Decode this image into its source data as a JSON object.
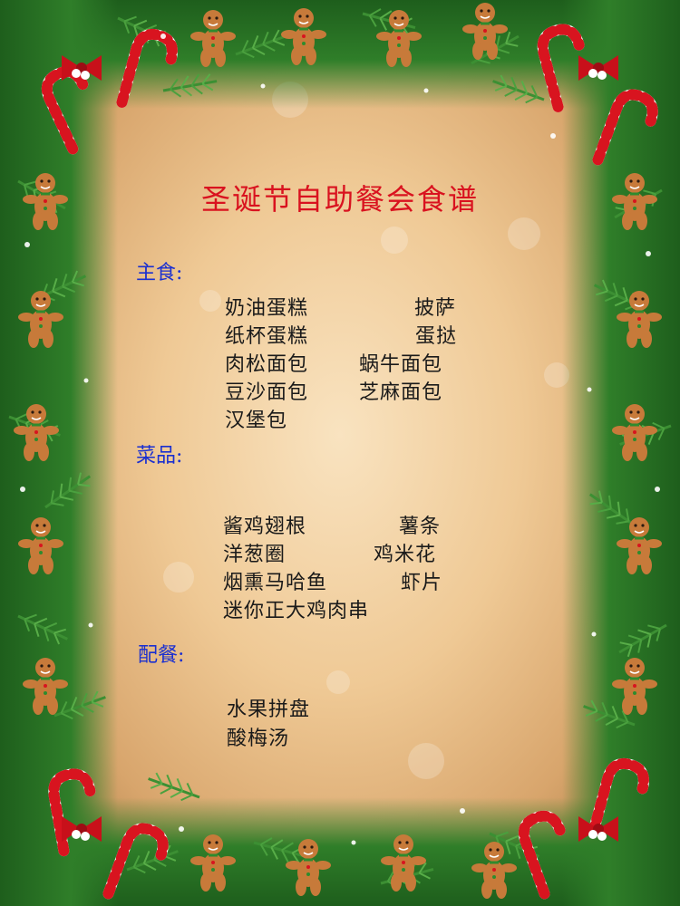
{
  "title": "圣诞节自助餐会食谱",
  "colors": {
    "title": "#d9121f",
    "section_label": "#1a2fd0",
    "item_text": "#1a1a1a",
    "pine_green": "#2f7e29",
    "candy_red": "#d8141f",
    "gingerbread": "#c77a3a"
  },
  "decorations": [
    "pine-branch-frame",
    "candy-cane-icon",
    "gingerbread-man-icon",
    "christmas-bow-icon",
    "sparkle-icon"
  ],
  "sections": {
    "staple": {
      "label": "主食:",
      "items": [
        "奶油蛋糕",
        "披萨",
        "纸杯蛋糕",
        "蛋挞",
        "肉松面包",
        "蜗牛面包",
        "豆沙面包",
        "芝麻面包",
        "汉堡包"
      ]
    },
    "dishes": {
      "label": "菜品:",
      "items": [
        "酱鸡翅根",
        "薯条",
        "洋葱圈",
        "鸡米花",
        "烟熏马哈鱼",
        "虾片",
        "迷你正大鸡肉串"
      ]
    },
    "sides": {
      "label": "配餐:",
      "items": [
        "水果拼盘",
        "酸梅汤"
      ]
    }
  }
}
